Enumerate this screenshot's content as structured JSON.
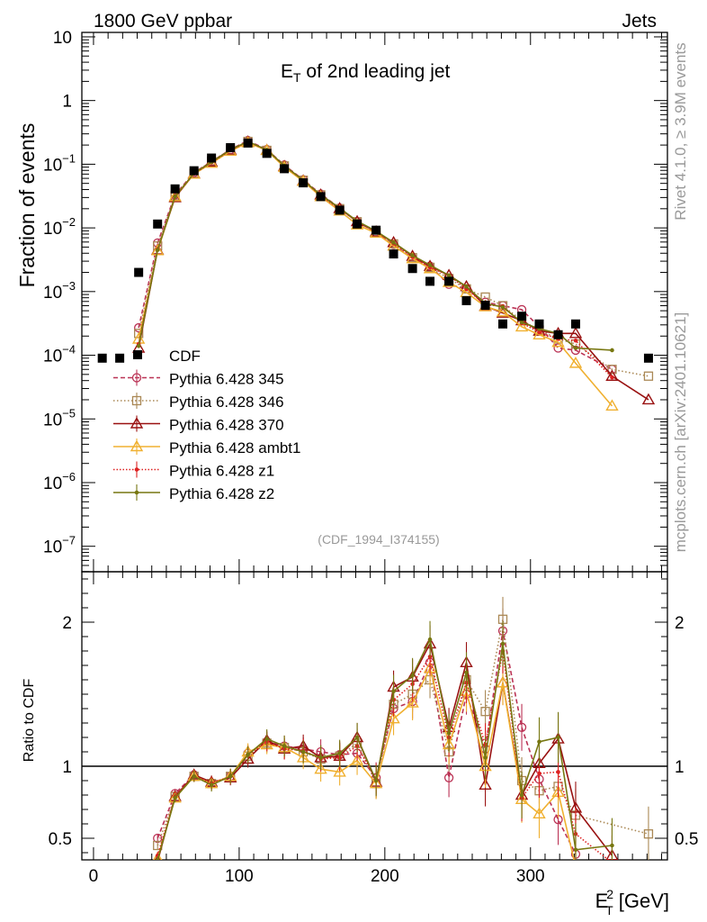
{
  "chart_data": {
    "type": "line",
    "title": "E",
    "title_sub": "T",
    "title_rest": " of 2nd leading jet",
    "header_left": "1800 GeV ppbar",
    "header_right": "Jets",
    "side_label_top": "Rivet 4.1.0, ≥ 3.9M events",
    "side_label_bottom": "mcplots.cern.ch [arXiv:2401.10621]",
    "ref_label": "(CDF_1994_I374155)",
    "ylabel": "Fraction of events",
    "ratio_ylabel": "Ratio to CDF",
    "xlabel_main": "E",
    "xlabel_sup": "2",
    "xlabel_sub": "T",
    "xlabel_unit": " [GeV]",
    "xlim": [
      -8,
      394
    ],
    "ylim_log": [
      -7.4,
      1.07
    ],
    "ratio_ylim": [
      0.35,
      2.35
    ],
    "x_ticks": [
      "0",
      "100",
      "200",
      "300"
    ],
    "y_ticks": [
      {
        "exp": -7,
        "base": "10",
        "sup": "−7"
      },
      {
        "exp": -6,
        "base": "10",
        "sup": "−6"
      },
      {
        "exp": -5,
        "base": "10",
        "sup": "−5"
      },
      {
        "exp": -4,
        "base": "10",
        "sup": "−4"
      },
      {
        "exp": -3,
        "base": "10",
        "sup": "−3"
      },
      {
        "exp": -2,
        "base": "10",
        "sup": "−2"
      },
      {
        "exp": -1,
        "base": "10",
        "sup": "−1"
      },
      {
        "exp": 0,
        "base": "1",
        "sup": ""
      },
      {
        "exp": 1,
        "base": "10",
        "sup": ""
      }
    ],
    "ratio_ticks": [
      "0.5",
      "1",
      "2"
    ],
    "x": [
      6,
      18,
      31,
      44,
      56,
      69,
      81,
      94,
      106,
      119,
      131,
      144,
      156,
      169,
      181,
      194,
      206,
      219,
      231,
      244,
      256,
      269,
      281,
      294,
      306,
      319,
      331,
      356,
      381
    ],
    "cdf": [
      9e-05,
      9e-05,
      0.002,
      0.0115,
      0.041,
      0.079,
      0.125,
      0.182,
      0.215,
      0.148,
      0.085,
      0.051,
      0.031,
      0.019,
      0.0115,
      0.0092,
      0.0039,
      0.0023,
      0.00145,
      0.00145,
      0.00072,
      0.00061,
      0.00031,
      0.00041,
      0.00031,
      0.00021,
      0.00031,
      null,
      9e-05
    ],
    "series": [
      {
        "name": "Pythia 6.428 345",
        "color": "#bb3355",
        "dash": "5,3",
        "marker": "circle",
        "values": [
          null,
          null,
          0.00027,
          0.0058,
          0.033,
          0.074,
          0.11,
          0.17,
          0.235,
          0.17,
          0.097,
          0.057,
          0.034,
          0.0205,
          0.0125,
          0.0085,
          0.0055,
          0.0033,
          0.0025,
          0.0013,
          0.0011,
          0.00068,
          0.0006,
          0.00052,
          0.00028,
          0.00013,
          0.00012,
          6e-05,
          null
        ],
        "ratio": [
          null,
          null,
          null,
          0.5,
          0.81,
          0.94,
          0.88,
          0.93,
          1.09,
          1.17,
          1.14,
          1.12,
          1.1,
          1.08,
          1.09,
          0.92,
          1.4,
          1.45,
          1.72,
          0.92,
          1.5,
          1.12,
          1.94,
          1.27,
          0.91,
          0.63,
          0.39,
          null,
          null
        ]
      },
      {
        "name": "Pythia 6.428 346",
        "color": "#aa8855",
        "dash": "1.5,2.5",
        "marker": "square",
        "values": [
          null,
          null,
          0.00022,
          0.0052,
          0.032,
          0.072,
          0.112,
          0.168,
          0.228,
          0.165,
          0.094,
          0.056,
          0.033,
          0.02,
          0.0125,
          0.0085,
          0.0056,
          0.0034,
          0.0024,
          0.0016,
          0.0011,
          0.00082,
          0.0006,
          0.00035,
          0.00025,
          0.00018,
          0.00015,
          6e-05,
          4.7e-05
        ],
        "ratio": [
          null,
          null,
          null,
          0.45,
          0.79,
          0.93,
          0.88,
          0.93,
          1.07,
          1.16,
          1.13,
          1.1,
          1.05,
          1.07,
          1.16,
          0.88,
          1.43,
          1.5,
          1.6,
          1.1,
          1.6,
          1.38,
          2.02,
          0.9,
          0.83,
          0.86,
          0.66,
          null,
          0.53
        ]
      },
      {
        "name": "Pythia 6.428 370",
        "color": "#991111",
        "dash": "",
        "marker": "triangle",
        "values": [
          null,
          null,
          0.00013,
          0.0045,
          0.03,
          0.071,
          0.109,
          0.167,
          0.225,
          0.166,
          0.093,
          0.055,
          0.033,
          0.0202,
          0.0126,
          0.0087,
          0.0059,
          0.0036,
          0.0025,
          0.0018,
          0.0012,
          0.00059,
          0.00046,
          0.00035,
          0.00024,
          0.00022,
          0.00022,
          4.7e-05,
          2e-05
        ],
        "ratio": [
          null,
          null,
          null,
          0.34,
          0.79,
          0.94,
          0.89,
          0.92,
          1.05,
          1.18,
          1.12,
          1.14,
          1.06,
          1.07,
          1.2,
          0.89,
          1.55,
          1.62,
          1.85,
          1.27,
          1.72,
          0.87,
          1.58,
          0.8,
          1.02,
          1.19,
          0.71,
          0.38,
          null
        ]
      },
      {
        "name": "Pythia 6.428 ambt1",
        "color": "#f0b030",
        "dash": "",
        "marker": "triangle",
        "values": [
          null,
          null,
          0.00018,
          0.0044,
          0.031,
          0.07,
          0.104,
          0.161,
          0.218,
          0.165,
          0.09,
          0.054,
          0.031,
          0.0185,
          0.0112,
          0.0083,
          0.0052,
          0.0033,
          0.0023,
          0.0014,
          0.00097,
          0.00058,
          0.00048,
          0.00028,
          0.00021,
          0.00016,
          7.5e-05,
          1.6e-05,
          null
        ],
        "ratio": [
          null,
          null,
          null,
          0.36,
          0.78,
          0.93,
          0.88,
          0.93,
          1.1,
          1.15,
          1.13,
          1.06,
          0.98,
          0.96,
          1.04,
          0.88,
          1.33,
          1.44,
          1.68,
          1.15,
          1.52,
          1.0,
          1.58,
          0.77,
          0.67,
          0.82,
          0.3,
          null,
          null
        ]
      },
      {
        "name": "Pythia 6.428 z1",
        "color": "#dd2222",
        "dash": "1.5,2",
        "marker": "dot",
        "values": [
          null,
          null,
          0.00015,
          0.0046,
          0.031,
          0.071,
          0.106,
          0.165,
          0.226,
          0.167,
          0.094,
          0.056,
          0.032,
          0.0197,
          0.0127,
          0.0086,
          0.0057,
          0.0035,
          0.0024,
          0.0018,
          0.0011,
          0.00062,
          0.00059,
          0.00032,
          0.00023,
          0.00018,
          0.00017,
          4.5e-05,
          null
        ],
        "ratio": [
          null,
          null,
          null,
          0.38,
          0.79,
          0.93,
          0.88,
          0.93,
          1.08,
          1.17,
          1.12,
          1.11,
          1.05,
          1.06,
          1.14,
          0.91,
          1.46,
          1.57,
          1.76,
          1.2,
          1.58,
          1.15,
          1.8,
          0.78,
          0.95,
          0.96,
          0.53,
          0.33,
          null
        ]
      },
      {
        "name": "Pythia 6.428 z2",
        "color": "#777711",
        "dash": "",
        "marker": "dot",
        "values": [
          null,
          null,
          0.00014,
          0.0045,
          0.031,
          0.072,
          0.108,
          0.168,
          0.228,
          0.168,
          0.095,
          0.056,
          0.033,
          0.0205,
          0.0128,
          0.0089,
          0.0059,
          0.0037,
          0.0026,
          0.0018,
          0.0012,
          0.00065,
          0.00057,
          0.00033,
          0.00026,
          0.00022,
          0.00013,
          0.00012,
          null
        ],
        "ratio": [
          null,
          null,
          null,
          0.35,
          0.78,
          0.93,
          0.87,
          0.93,
          1.08,
          1.19,
          1.14,
          1.1,
          1.06,
          1.09,
          1.2,
          0.9,
          1.52,
          1.63,
          1.88,
          1.23,
          1.65,
          1.06,
          1.85,
          0.8,
          1.17,
          1.2,
          0.42,
          0.45,
          null
        ]
      }
    ]
  }
}
